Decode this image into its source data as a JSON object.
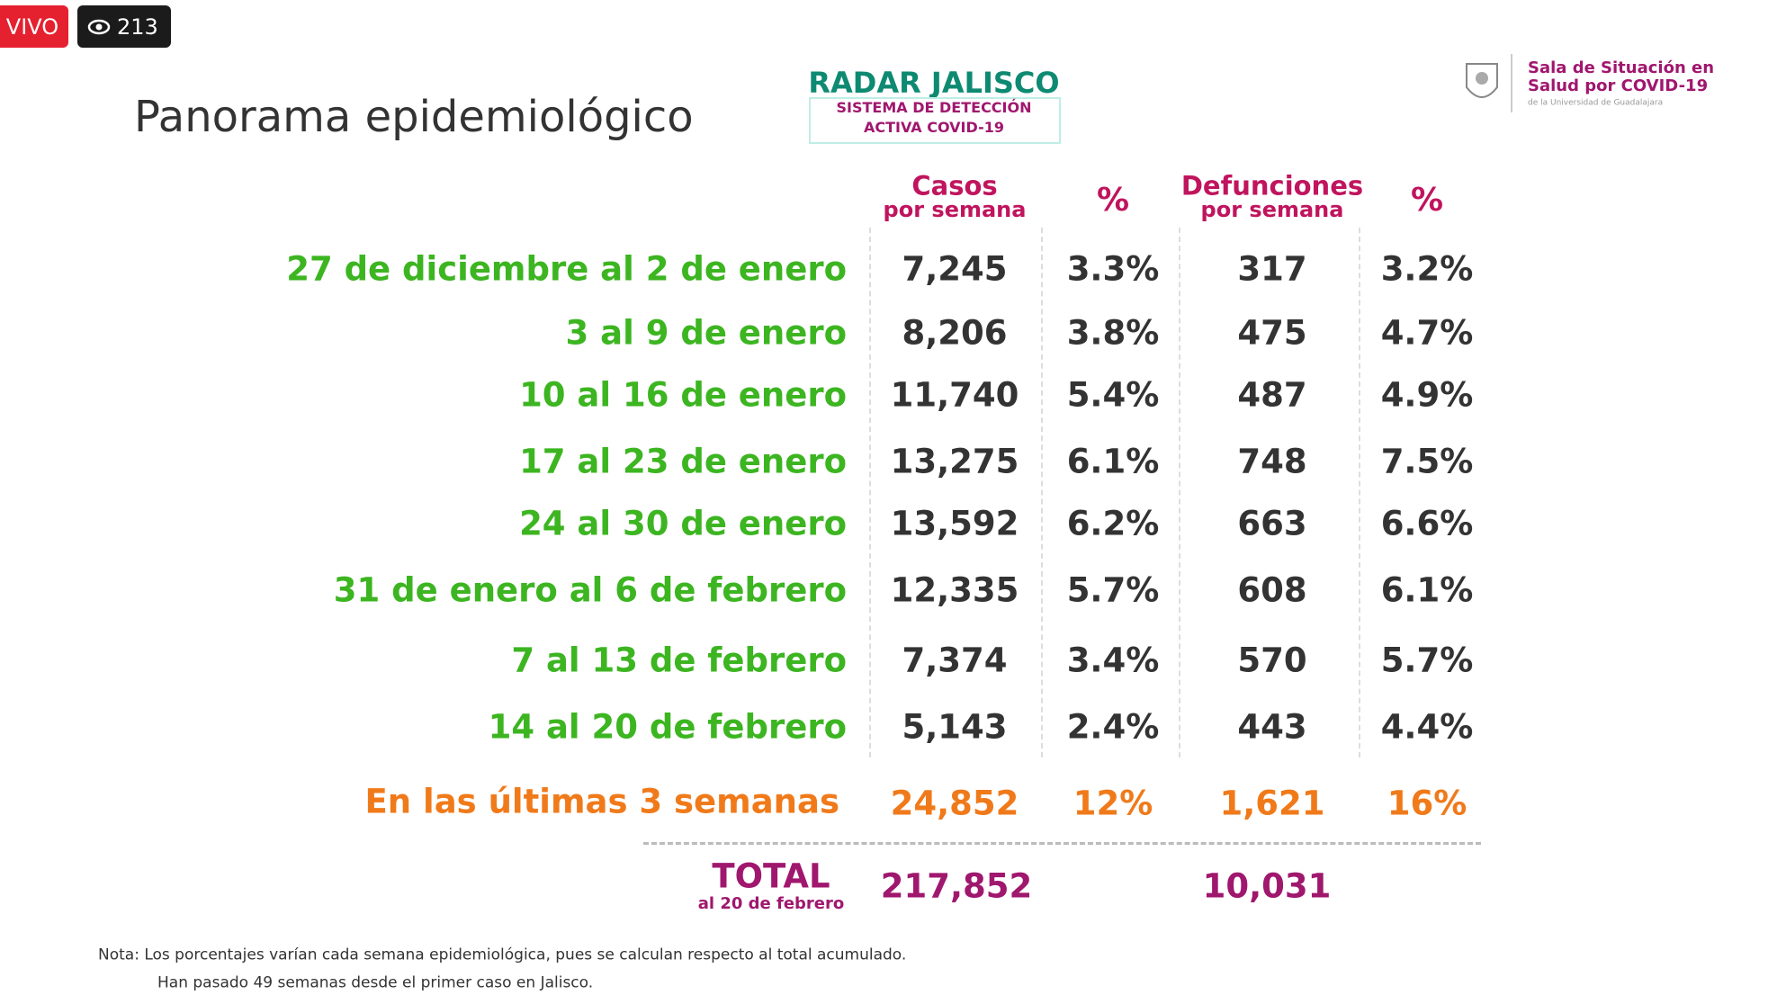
{
  "live": {
    "label": "VIVO",
    "viewers": "213"
  },
  "header": {
    "title": "Panorama epidemiológico",
    "logo": {
      "name": "RADAR JALISCO",
      "subtitle": [
        "SISTEMA DE DETECCIÓN",
        "ACTIVA COVID-19"
      ]
    },
    "partner": [
      "Sala de Situación en",
      "Salud por COVID-19",
      "de la Universidad de Guadalajara"
    ]
  },
  "table": {
    "columns": [
      [
        "Casos",
        "por semana"
      ],
      [
        "%"
      ],
      [
        "Defunciones",
        "por semana"
      ],
      [
        "%"
      ]
    ],
    "rows": [
      [
        "27 de diciembre al 2 de enero",
        "7,245",
        "3.3%",
        "317",
        "3.2%"
      ],
      [
        "3 al 9 de enero",
        "8,206",
        "3.8%",
        "475",
        "4.7%"
      ],
      [
        "10 al 16 de enero",
        "11,740",
        "5.4%",
        "487",
        "4.9%"
      ],
      [
        "17 al 23 de enero",
        "13,275",
        "6.1%",
        "748",
        "7.5%"
      ],
      [
        "24 al 30 de enero",
        "13,592",
        "6.2%",
        "663",
        "6.6%"
      ],
      [
        "31 de enero al 6 de febrero",
        "12,335",
        "5.7%",
        "608",
        "6.1%"
      ],
      [
        "7 al 13 de febrero",
        "7,374",
        "3.4%",
        "570",
        "5.7%"
      ],
      [
        "14 al 20 de febrero",
        "5,143",
        "2.4%",
        "443",
        "4.4%"
      ]
    ],
    "summary": [
      "En las últimas 3 semanas",
      "24,852",
      "12%",
      "1,621",
      "16%"
    ],
    "total": {
      "label": "TOTAL",
      "sublabel": "al 20 de febrero",
      "cases": "217,852",
      "deaths": "10,031"
    }
  },
  "notes": [
    "Nota: Los porcentajes varían cada semana epidemiológica, pues se calculan respecto al total acumulado.",
    "Han pasado 49 semanas desde el primer caso en Jalisco."
  ]
}
